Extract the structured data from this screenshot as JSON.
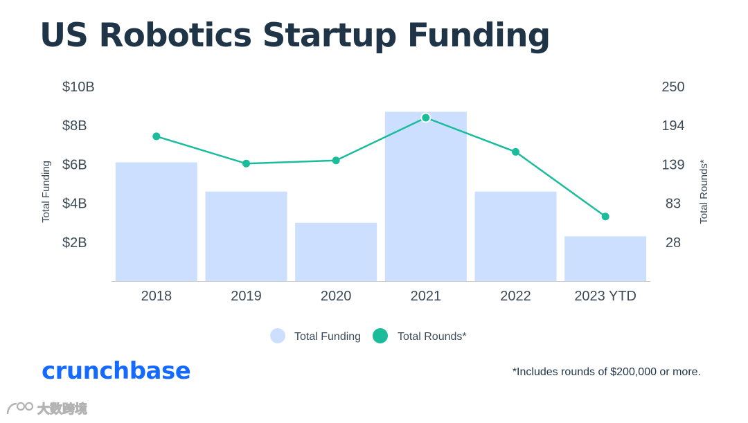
{
  "chart_data": {
    "type": "bar",
    "title": "US Robotics Startup Funding",
    "categories": [
      "2018",
      "2019",
      "2020",
      "2021",
      "2022",
      "2023 YTD"
    ],
    "series": [
      {
        "name": "Total Funding",
        "type": "bar",
        "axis": "left",
        "unit": "USD billions",
        "values": [
          6.1,
          4.6,
          3.0,
          8.7,
          4.6,
          2.3
        ],
        "color": "#cddfff"
      },
      {
        "name": "Total Rounds*",
        "type": "line",
        "axis": "right",
        "values": [
          186,
          151,
          155,
          210,
          166,
          83
        ],
        "color": "#1bbc9b"
      }
    ],
    "y_left": {
      "label": "Total Funding",
      "range": [
        0,
        10
      ],
      "ticks": [
        2,
        4,
        6,
        8,
        10
      ],
      "tick_labels": [
        "$2B",
        "$4B",
        "$6B",
        "$8B",
        "$10B"
      ]
    },
    "y_right": {
      "label": "Total Rounds*",
      "range": [
        0,
        250
      ],
      "ticks": [
        28,
        83,
        139,
        194,
        250
      ],
      "tick_labels": [
        "28",
        "83",
        "139",
        "194",
        "250"
      ]
    },
    "grid": false,
    "legend_position": "bottom-center",
    "axis_text_color": "#3c4a56"
  },
  "header": {
    "title": "US Robotics Startup Funding",
    "title_color": "#1f3447"
  },
  "footer": {
    "logo_text": "crunchbase",
    "logo_color": "#146aff",
    "footnote": "*Includes rounds of $200,000 or more."
  },
  "watermark": {
    "text": "大数跨境",
    "icon": "watermark-logo-icon"
  }
}
